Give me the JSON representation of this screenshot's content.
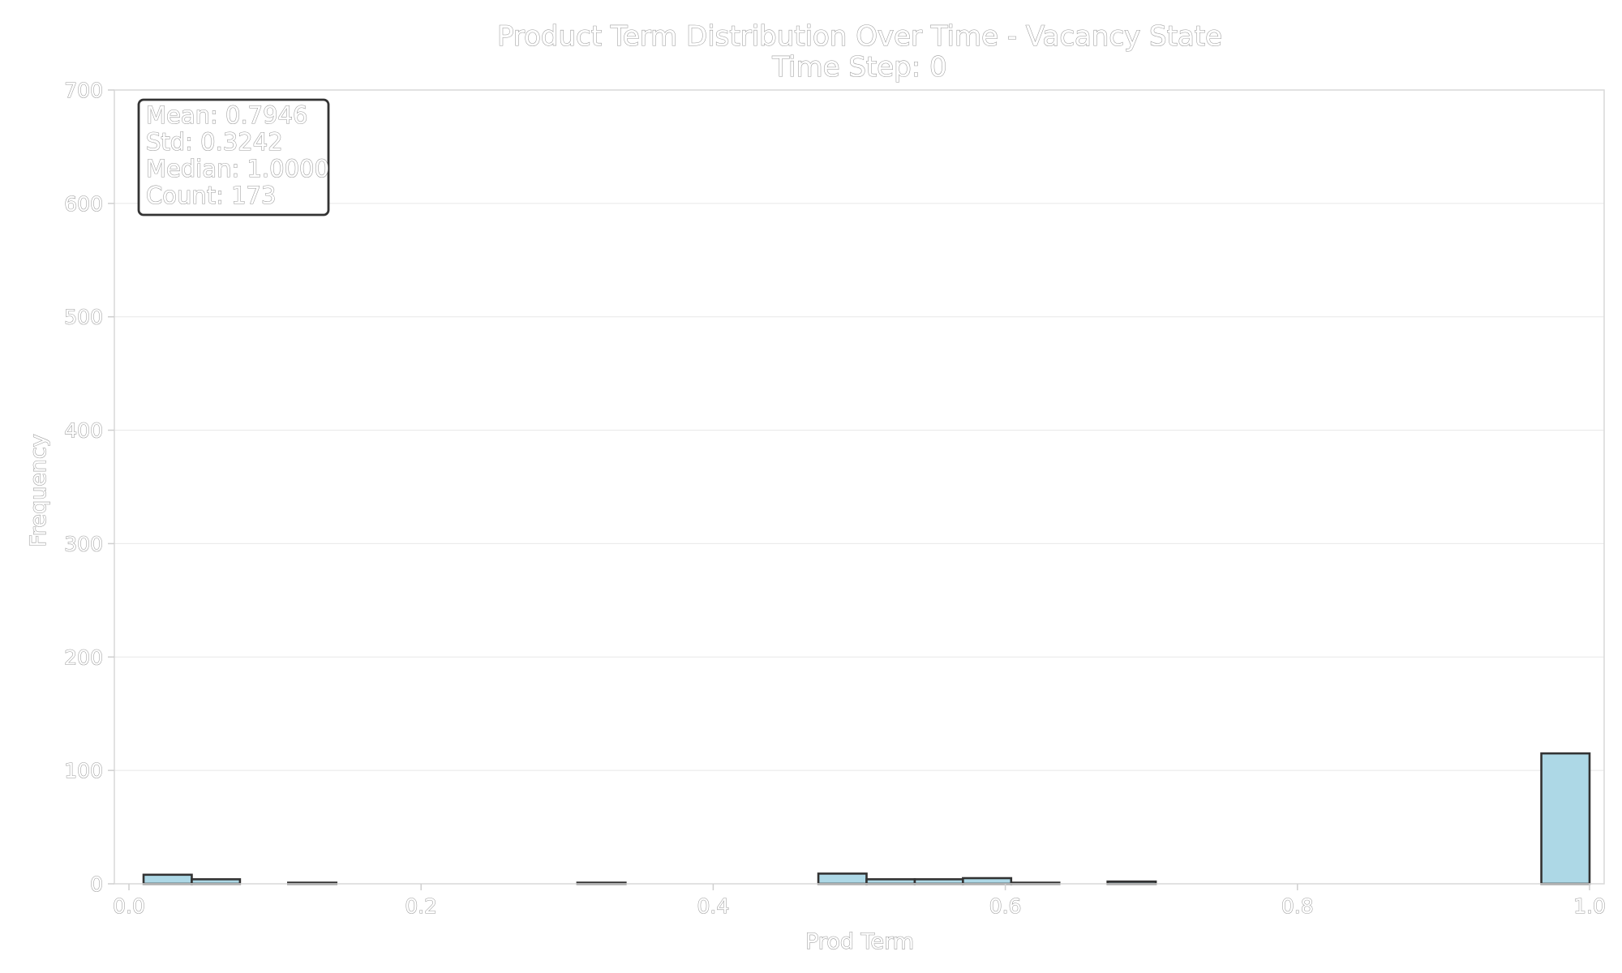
{
  "chart_data": {
    "type": "bar",
    "title": "Product Term Distribution Over Time - Vacancy State",
    "subtitle": "Time Step: 0",
    "xlabel": "Prod Term",
    "ylabel": "Frequency",
    "xlim": [
      -0.01,
      1.01
    ],
    "ylim": [
      0,
      700
    ],
    "x_ticks": [
      0.0,
      0.2,
      0.4,
      0.6,
      0.8,
      1.0
    ],
    "x_tick_labels": [
      "0.0",
      "0.2",
      "0.4",
      "0.6",
      "0.8",
      "1.0"
    ],
    "y_ticks": [
      0,
      100,
      200,
      300,
      400,
      500,
      600,
      700
    ],
    "y_tick_labels": [
      "0",
      "100",
      "200",
      "300",
      "400",
      "500",
      "600",
      "700"
    ],
    "grid": true,
    "bar_color": "#add8e6",
    "bar_edge_color": "#333333",
    "bins": [
      {
        "x0": 0.01,
        "x1": 0.043,
        "value": 8
      },
      {
        "x0": 0.043,
        "x1": 0.076,
        "value": 4
      },
      {
        "x0": 0.076,
        "x1": 0.109,
        "value": 0
      },
      {
        "x0": 0.109,
        "x1": 0.142,
        "value": 1
      },
      {
        "x0": 0.142,
        "x1": 0.175,
        "value": 0
      },
      {
        "x0": 0.208,
        "x1": 0.241,
        "value": 0
      },
      {
        "x0": 0.241,
        "x1": 0.274,
        "value": 0
      },
      {
        "x0": 0.274,
        "x1": 0.307,
        "value": 0
      },
      {
        "x0": 0.307,
        "x1": 0.34,
        "value": 1
      },
      {
        "x0": 0.406,
        "x1": 0.439,
        "value": 0
      },
      {
        "x0": 0.472,
        "x1": 0.505,
        "value": 9
      },
      {
        "x0": 0.505,
        "x1": 0.538,
        "value": 4
      },
      {
        "x0": 0.538,
        "x1": 0.571,
        "value": 4
      },
      {
        "x0": 0.571,
        "x1": 0.604,
        "value": 5
      },
      {
        "x0": 0.604,
        "x1": 0.637,
        "value": 1
      },
      {
        "x0": 0.637,
        "x1": 0.67,
        "value": 0
      },
      {
        "x0": 0.67,
        "x1": 0.703,
        "value": 2
      },
      {
        "x0": 0.703,
        "x1": 0.736,
        "value": 0
      },
      {
        "x0": 0.967,
        "x1": 1.0,
        "value": 115
      }
    ],
    "stats_lines": [
      "Mean: 0.7946",
      "Std: 0.3242",
      "Median: 1.0000",
      "Count: 173"
    ],
    "stats_box_position": "top-left"
  }
}
